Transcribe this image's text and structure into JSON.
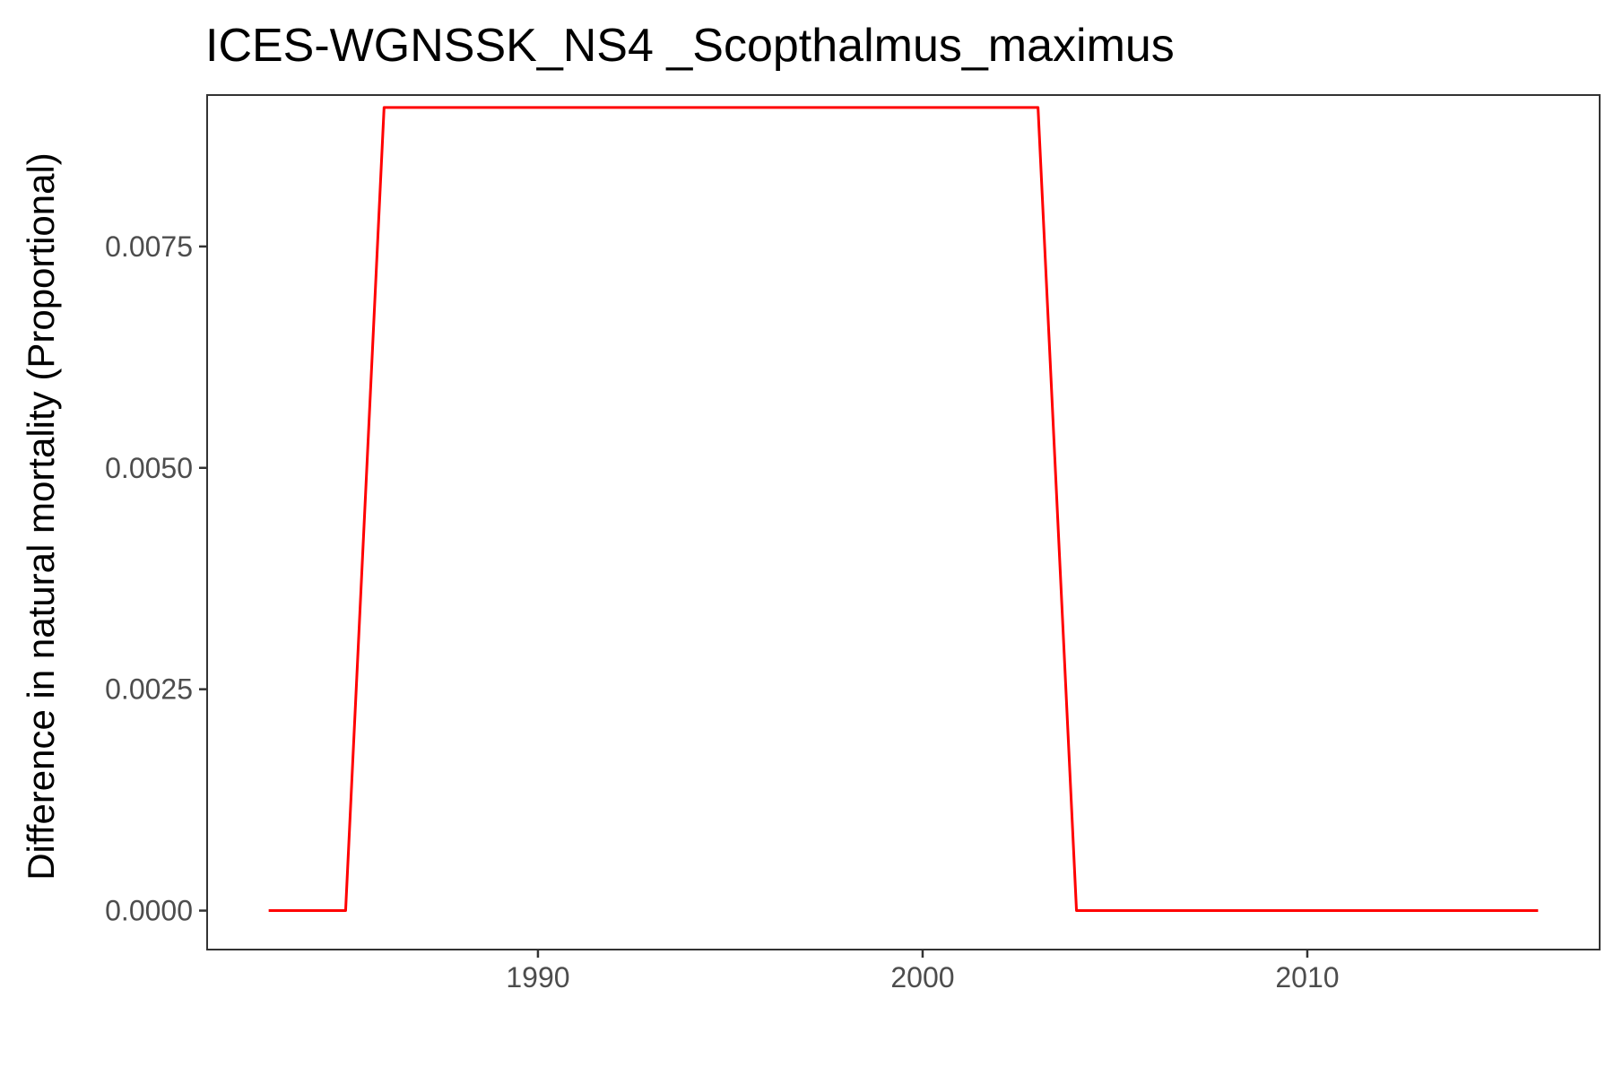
{
  "chart_data": {
    "type": "line",
    "title": "ICES-WGNSSK_NS4 _Scopthalmus_maximus",
    "xlabel": "",
    "ylabel": "Difference in natural mortality (Proportional)",
    "xlim": [
      1981.4,
      2017.6
    ],
    "ylim": [
      -0.00044,
      0.00921
    ],
    "x_ticks": [
      1990,
      2000,
      2010
    ],
    "x_tick_labels": [
      "1990",
      "2000",
      "2010"
    ],
    "y_ticks": [
      0,
      0.0025,
      0.005,
      0.0075
    ],
    "y_tick_labels": [
      "0.0000",
      "0.0025",
      "0.0050",
      "0.0075"
    ],
    "grid": false,
    "legend": "none",
    "series": [
      {
        "color": "#ff0000",
        "x": [
          1983,
          1984,
          1985,
          1986,
          1987,
          1988,
          1989,
          1990,
          1991,
          1992,
          1993,
          1994,
          1995,
          1996,
          1997,
          1998,
          1999,
          2000,
          2001,
          2002,
          2003,
          2004,
          2005,
          2006,
          2007,
          2008,
          2009,
          2010,
          2011,
          2012,
          2013,
          2014,
          2015,
          2016
        ],
        "y": [
          0,
          0,
          0,
          0.00907,
          0.00907,
          0.00907,
          0.00907,
          0.00907,
          0.00907,
          0.00907,
          0.00907,
          0.00907,
          0.00907,
          0.00907,
          0.00907,
          0.00907,
          0.00907,
          0.00907,
          0.00907,
          0.00907,
          0.00907,
          0,
          0,
          0,
          0,
          0,
          0,
          0,
          0,
          0,
          0,
          0,
          0,
          0
        ]
      }
    ]
  }
}
